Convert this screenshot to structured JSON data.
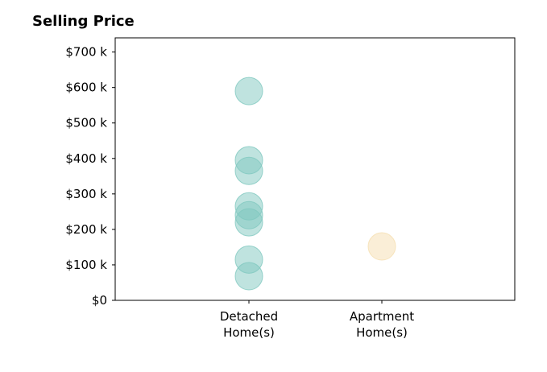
{
  "chart_data": {
    "type": "scatter",
    "title": "Selling Price",
    "xlabel": "",
    "ylabel": "",
    "categories": [
      {
        "line1": "Detached",
        "line2": "Home(s)"
      },
      {
        "line1": "Apartment",
        "line2": "Home(s)"
      }
    ],
    "ylim": [
      0,
      740000
    ],
    "yticks": [
      {
        "value": 0,
        "label": "$0"
      },
      {
        "value": 100000,
        "label": "$100 k"
      },
      {
        "value": 200000,
        "label": "$200 k"
      },
      {
        "value": 300000,
        "label": "$300 k"
      },
      {
        "value": 400000,
        "label": "$400 k"
      },
      {
        "value": 500000,
        "label": "$500 k"
      },
      {
        "value": 600000,
        "label": "$600 k"
      },
      {
        "value": 700000,
        "label": "$700 k"
      }
    ],
    "grid": false,
    "series": [
      {
        "category_index": 0,
        "color": "#7fc8bf",
        "values": [
          590000,
          395000,
          365000,
          265000,
          240000,
          220000,
          115000,
          68000
        ]
      },
      {
        "category_index": 1,
        "color": "#f5deb0",
        "values": [
          152000
        ]
      }
    ]
  }
}
